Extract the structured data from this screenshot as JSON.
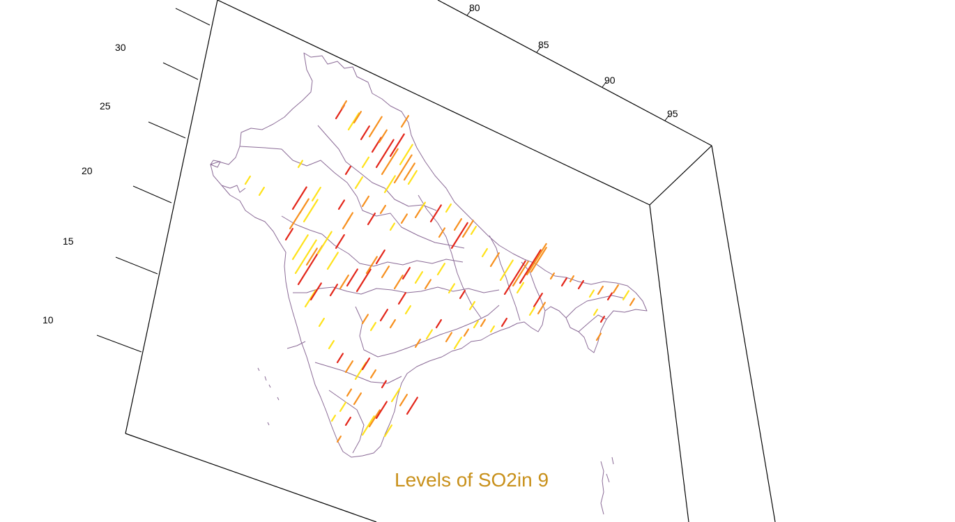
{
  "title": "Levels of SO2in 9",
  "colors": {
    "frame": "#000000",
    "boundary": "#8a6a96",
    "title": "#c8901a",
    "low": "#ffe21a",
    "mid": "#f7901e",
    "high": "#e3261a"
  },
  "axes": {
    "longitude": {
      "ticks": [
        "80",
        "85",
        "90",
        "95"
      ]
    },
    "latitude": {
      "ticks": [
        "30",
        "25",
        "20",
        "15",
        "10"
      ]
    }
  },
  "map": {
    "region": "India",
    "layers": [
      "state-boundaries",
      "so2-level-segments"
    ],
    "level_classes": [
      "low",
      "mid",
      "high"
    ]
  }
}
